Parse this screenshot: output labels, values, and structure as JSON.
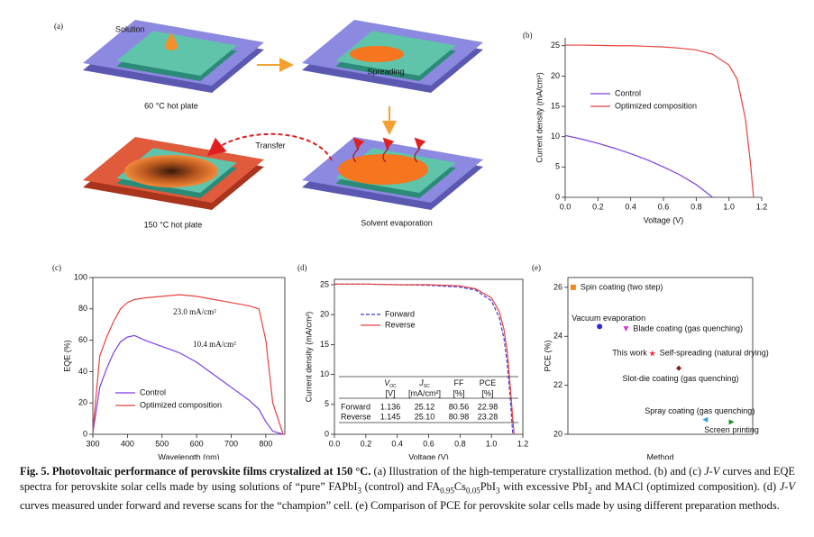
{
  "diagram": {
    "panel": "(a)",
    "labels": {
      "solution": "Solution",
      "plate60": "60 °C hot plate",
      "spreading": "Spreading",
      "transfer": "Transfer",
      "plate150": "150 °C hot plate",
      "evaporation": "Solvent evaporation"
    }
  },
  "chart_data": [
    {
      "type": "line",
      "panel": "(b)",
      "x_label": "Voltage (V)",
      "y_label": "Current density (mA/cm²)",
      "x": [
        0,
        0.1,
        0.2,
        0.3,
        0.4,
        0.5,
        0.6,
        0.7,
        0.8,
        0.9,
        1.0,
        1.05,
        1.1,
        1.13,
        1.15
      ],
      "series": [
        {
          "name": "Control",
          "color": "#7b3fe4",
          "values": [
            10.2,
            9.6,
            8.9,
            8.1,
            7.2,
            6.2,
            5.0,
            3.7,
            2.1,
            0,
            null,
            null,
            null,
            null,
            null
          ]
        },
        {
          "name": "Optimized composition",
          "color": "#e8423f",
          "values": [
            25.1,
            25.1,
            25.05,
            25.0,
            25.0,
            24.9,
            24.8,
            24.6,
            24.3,
            23.6,
            21.8,
            19.5,
            13,
            6,
            0
          ]
        }
      ],
      "xlim": [
        0,
        1.2
      ],
      "xticks": [
        {
          "value": 0,
          "label": "0.0"
        },
        0.2,
        0.4,
        0.6,
        0.8,
        {
          "value": 1,
          "label": "1.0"
        },
        1.2
      ],
      "ylim": [
        0,
        26.3
      ],
      "yticks": [
        0,
        5,
        10,
        15,
        20,
        25
      ]
    },
    {
      "type": "line",
      "panel": "(c)",
      "x_label": "Wavelength (nm)",
      "y_label": "EQE (%)",
      "x": [
        300,
        320,
        340,
        360,
        380,
        400,
        420,
        450,
        500,
        550,
        600,
        650,
        700,
        750,
        780,
        800,
        820,
        850
      ],
      "series": [
        {
          "name": "Control",
          "color": "#7b3fe4",
          "values": [
            1,
            30,
            42,
            52,
            59,
            62,
            63,
            60,
            56,
            52,
            46,
            38,
            30,
            22,
            16,
            8,
            2,
            0
          ]
        },
        {
          "name": "Optimized composition",
          "color": "#e8423f",
          "values": [
            2,
            50,
            62,
            72,
            80,
            84,
            86,
            87,
            88,
            89,
            88,
            86,
            84,
            82,
            80,
            60,
            20,
            0
          ]
        }
      ],
      "annotations": [
        "23.0 mA/cm²",
        "10.4 mA/cm²"
      ],
      "xlim": [
        300,
        855
      ],
      "xticks": [
        300,
        400,
        500,
        600,
        700,
        800
      ],
      "ylim": [
        0,
        100
      ],
      "yticks": [
        0,
        20,
        40,
        60,
        80,
        100
      ]
    },
    {
      "type": "line",
      "panel": "(d)",
      "x_label": "Voltage (V)",
      "y_label": "Current density (mA/cm²)",
      "x": [
        0,
        0.2,
        0.4,
        0.6,
        0.8,
        0.9,
        1.0,
        1.05,
        1.08,
        1.1,
        1.12,
        1.136,
        1.145
      ],
      "series": [
        {
          "name": "Forward",
          "color": "#3b3bd6",
          "dash": true,
          "values": [
            25.1,
            25.1,
            25.0,
            24.9,
            24.6,
            24.1,
            22.3,
            19.5,
            16,
            12,
            6,
            0,
            null
          ]
        },
        {
          "name": "Reverse",
          "color": "#e8423f",
          "dash": false,
          "values": [
            25.1,
            25.1,
            25.0,
            25.0,
            24.8,
            24.3,
            22.8,
            20.5,
            17.5,
            14,
            8,
            2.5,
            0
          ]
        }
      ],
      "table": {
        "header": [
          {
            "symbol": "V",
            "sub": "OC",
            "unit": "[V]"
          },
          {
            "symbol": "J",
            "sub": "SC",
            "unit": "[mA/cm²]"
          },
          {
            "symbol": "FF",
            "sub": "",
            "unit": "[%]"
          },
          {
            "symbol": "PCE",
            "sub": "",
            "unit": "[%]"
          }
        ],
        "rows": [
          [
            "Forward",
            "1.136",
            "25.12",
            "80.56",
            "22.98"
          ],
          [
            "Reverse",
            "1.145",
            "25.10",
            "80.98",
            "23.28"
          ]
        ]
      },
      "xlim": [
        0,
        1.2
      ],
      "xticks": [
        {
          "value": 0,
          "label": "0.0"
        },
        0.2,
        0.4,
        0.6,
        0.8,
        {
          "value": 1,
          "label": "1.0"
        },
        1.2
      ],
      "ylim": [
        0,
        25.9
      ],
      "yticks": [
        0,
        5,
        10,
        15,
        20,
        25
      ]
    },
    {
      "type": "scatter",
      "panel": "(e)",
      "x_label": "Method",
      "y_label": "PCE (%)",
      "note": "This work",
      "series": [
        {
          "name": "Spin coating (two step)",
          "color": "#f08a1c",
          "marker": "square",
          "values": [
            26.0
          ]
        },
        {
          "name": "Vacuum evaporation",
          "color": "#2a2ad8",
          "marker": "circle",
          "values": [
            24.4
          ]
        },
        {
          "name": "Blade coating  (gas quenching)",
          "color": "#d93ad9",
          "marker": "triangle-down",
          "values": [
            24.3
          ]
        },
        {
          "name": "Self-spreading (natural drying)",
          "color": "#e8282a",
          "marker": "star",
          "values": [
            23.3
          ]
        },
        {
          "name": "Slot-die coating (gas quenching)",
          "color": "#8b1a1a",
          "marker": "diamond",
          "values": [
            22.7
          ]
        },
        {
          "name": "Spray coating (gas quenching)",
          "color": "#2a9ee8",
          "marker": "triangle-left",
          "values": [
            20.6
          ]
        },
        {
          "name": "Screen printing",
          "color": "#1f8a2a",
          "marker": "triangle-right",
          "values": [
            20.5
          ]
        }
      ],
      "ylim": [
        20,
        26.4
      ],
      "yticks": [
        20,
        22,
        24,
        26
      ]
    }
  ],
  "caption": {
    "title": "Fig. 5.  Photovoltaic performance of perovskite films crystalized at 150 °C.",
    "runs": [
      [
        " (a) Illustration of the high-temperature crystallization method. (b) and (c) ",
        "n"
      ],
      [
        "J-V",
        "i"
      ],
      [
        " curves and EQE spectra for perovskite solar cells made by using solutions of “pure” FAPbI",
        "n"
      ],
      [
        "3",
        "sub"
      ],
      [
        " (control) and FA",
        "n"
      ],
      [
        "0.95",
        "sub"
      ],
      [
        "Cs",
        "n"
      ],
      [
        "0.05",
        "sub"
      ],
      [
        "PbI",
        "n"
      ],
      [
        "3",
        "sub"
      ],
      [
        " with excessive PbI",
        "n"
      ],
      [
        "2",
        "sub"
      ],
      [
        " and MACl (optimized composition). (d) ",
        "n"
      ],
      [
        "J-V",
        "i"
      ],
      [
        " curves measured under forward and reverse scans for the “champion” cell. (e) Comparison of PCE for perovskite solar cells made by using different preparation methods.",
        "n"
      ]
    ]
  }
}
